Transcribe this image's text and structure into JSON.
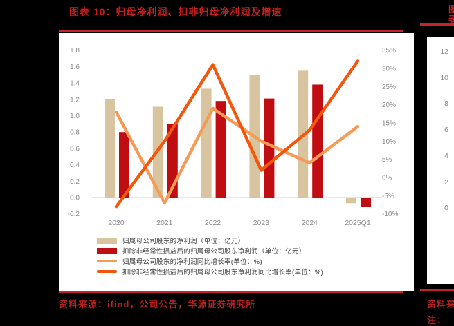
{
  "page": {
    "background": "#000000",
    "accent_red": "#c4232c"
  },
  "figure1": {
    "title": "图表 10：归母净利润、扣非归母净利润及增速",
    "source": "资料来源：ifind，公司公告，华源证券研究所",
    "chart_data": {
      "type": "bar+line combo",
      "categories": [
        "2020",
        "2021",
        "2022",
        "2023",
        "2024",
        "2025Q1"
      ],
      "series": [
        {
          "name": "归属母公司股东的净利润（单位：亿元）",
          "type": "bar",
          "axis": "left",
          "color": "#d9c4a0",
          "values": [
            1.2,
            1.11,
            1.33,
            1.5,
            1.55,
            -0.07
          ]
        },
        {
          "name": "扣除非经常性损益后的归属母公司股东净利润（单位：亿元）",
          "type": "bar",
          "axis": "left",
          "color": "#c00d12",
          "values": [
            0.8,
            0.9,
            1.18,
            1.21,
            1.38,
            -0.11
          ]
        },
        {
          "name": "归属母公司股东的净利润同比增长率(单位：%)",
          "type": "line",
          "axis": "right",
          "color": "#f79a56",
          "values": [
            18,
            -7,
            19,
            10,
            4,
            14
          ]
        },
        {
          "name": "扣除非经常性损益后的归属母公司股东净利润同比增长率(单位：%)",
          "type": "line",
          "axis": "right",
          "color": "#f4560c",
          "values": [
            -8,
            10,
            31,
            2,
            13,
            32
          ]
        }
      ],
      "left_axis": {
        "min": -0.2,
        "max": 1.8,
        "step": 0.2,
        "tick_values": [
          1.8,
          1.6,
          1.4,
          1.2,
          1.0,
          0.8,
          0.6,
          0.4,
          0.2,
          0.0,
          -0.2
        ]
      },
      "right_axis": {
        "min": -10,
        "max": 35,
        "step": 5,
        "tick_values": [
          35,
          30,
          25,
          20,
          15,
          10,
          5,
          0,
          -5,
          -10
        ],
        "suffix": "%"
      },
      "grid": "zero-line-only",
      "legend_position": "bottom-left",
      "axis_text_color": "#8a8a8a",
      "axis_line_color": "#d6d6d6"
    }
  },
  "figure2": {
    "title_fragment_line1": "图",
    "title_fragment_line2": "表",
    "y_axis_ticks": [
      12,
      10,
      8,
      6,
      4,
      2,
      0
    ],
    "source_fragment": "资料来",
    "note_fragment": "注："
  }
}
